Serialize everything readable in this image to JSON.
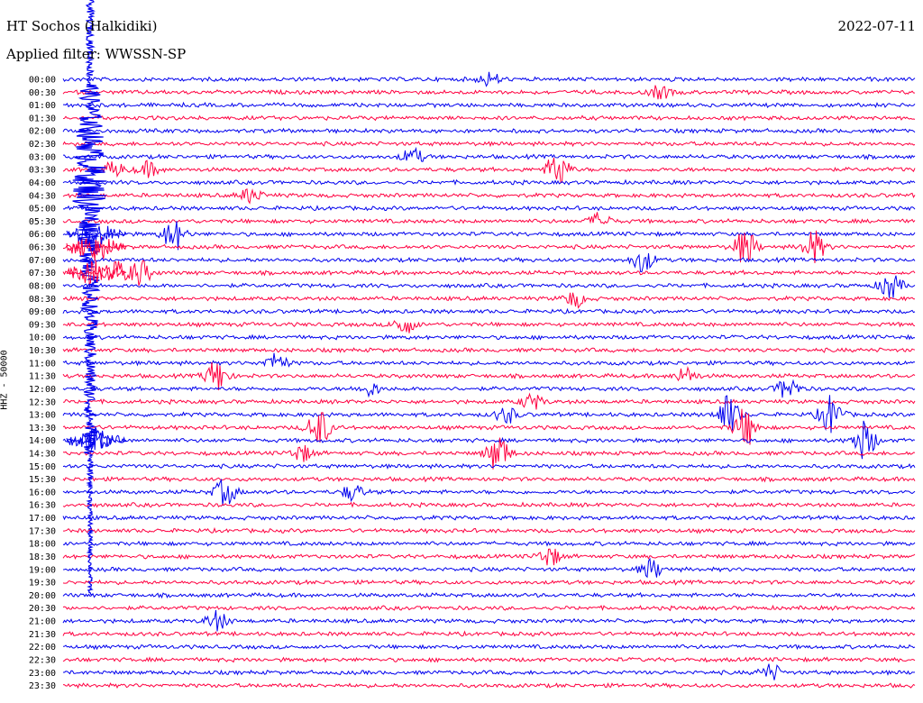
{
  "header": {
    "station": "HT Sochos (Halkidiki)",
    "date": "2022-07-11",
    "filter": "Applied filter: WWSSN-SP"
  },
  "chart_data": {
    "type": "line",
    "title": "HT Sochos (Halkidiki)",
    "ylabel": "HHZ - 50000",
    "colors": [
      "#0000ee",
      "#ff0040"
    ],
    "rows": [
      "00:00",
      "00:30",
      "01:00",
      "01:30",
      "02:00",
      "02:30",
      "03:00",
      "03:30",
      "04:00",
      "04:30",
      "05:00",
      "05:30",
      "06:00",
      "06:30",
      "07:00",
      "07:30",
      "08:00",
      "08:30",
      "09:00",
      "09:30",
      "10:00",
      "10:30",
      "11:00",
      "11:30",
      "12:00",
      "12:30",
      "13:00",
      "13:30",
      "14:00",
      "14:30",
      "15:00",
      "15:30",
      "16:00",
      "16:30",
      "17:00",
      "17:30",
      "18:00",
      "18:30",
      "19:00",
      "19:30",
      "20:00",
      "20:30",
      "21:00",
      "21:30",
      "22:00",
      "22:30",
      "23:00",
      "23:30"
    ],
    "events": [
      {
        "row": 0,
        "t": 0.5,
        "amp": 0.4
      },
      {
        "row": 1,
        "t": 0.7,
        "amp": 0.4
      },
      {
        "row": 6,
        "t": 0.41,
        "amp": 0.5
      },
      {
        "row": 7,
        "t": 0.06,
        "amp": 0.45
      },
      {
        "row": 7,
        "t": 0.1,
        "amp": 0.45
      },
      {
        "row": 7,
        "t": 0.58,
        "amp": 1.1
      },
      {
        "row": 9,
        "t": 0.22,
        "amp": 0.45
      },
      {
        "row": 11,
        "t": 0.63,
        "amp": 0.5
      },
      {
        "row": 12,
        "t": 0.13,
        "amp": 1.0
      },
      {
        "row": 13,
        "t": 0.8,
        "amp": 1.1
      },
      {
        "row": 13,
        "t": 0.88,
        "amp": 1.0
      },
      {
        "row": 14,
        "t": 0.68,
        "amp": 0.7
      },
      {
        "row": 15,
        "t": 0.06,
        "amp": 0.8
      },
      {
        "row": 15,
        "t": 0.09,
        "amp": 0.8
      },
      {
        "row": 16,
        "t": 0.97,
        "amp": 0.8
      },
      {
        "row": 17,
        "t": 0.6,
        "amp": 0.5
      },
      {
        "row": 19,
        "t": 0.4,
        "amp": 0.6
      },
      {
        "row": 22,
        "t": 0.25,
        "amp": 0.6
      },
      {
        "row": 23,
        "t": 0.18,
        "amp": 1.0
      },
      {
        "row": 23,
        "t": 0.73,
        "amp": 0.5
      },
      {
        "row": 24,
        "t": 0.36,
        "amp": 0.4
      },
      {
        "row": 24,
        "t": 0.85,
        "amp": 0.7
      },
      {
        "row": 25,
        "t": 0.55,
        "amp": 0.5
      },
      {
        "row": 26,
        "t": 0.52,
        "amp": 0.5
      },
      {
        "row": 26,
        "t": 0.78,
        "amp": 1.2
      },
      {
        "row": 26,
        "t": 0.9,
        "amp": 1.2
      },
      {
        "row": 27,
        "t": 0.3,
        "amp": 1.2
      },
      {
        "row": 27,
        "t": 0.8,
        "amp": 1.2
      },
      {
        "row": 28,
        "t": 0.04,
        "amp": 0.8
      },
      {
        "row": 28,
        "t": 0.94,
        "amp": 1.2
      },
      {
        "row": 29,
        "t": 0.51,
        "amp": 1.2
      },
      {
        "row": 29,
        "t": 0.28,
        "amp": 0.5
      },
      {
        "row": 32,
        "t": 0.19,
        "amp": 0.8
      },
      {
        "row": 32,
        "t": 0.34,
        "amp": 0.5
      },
      {
        "row": 37,
        "t": 0.57,
        "amp": 0.6
      },
      {
        "row": 38,
        "t": 0.69,
        "amp": 0.6
      },
      {
        "row": 42,
        "t": 0.18,
        "amp": 0.6
      },
      {
        "row": 46,
        "t": 0.83,
        "amp": 0.5
      }
    ]
  }
}
